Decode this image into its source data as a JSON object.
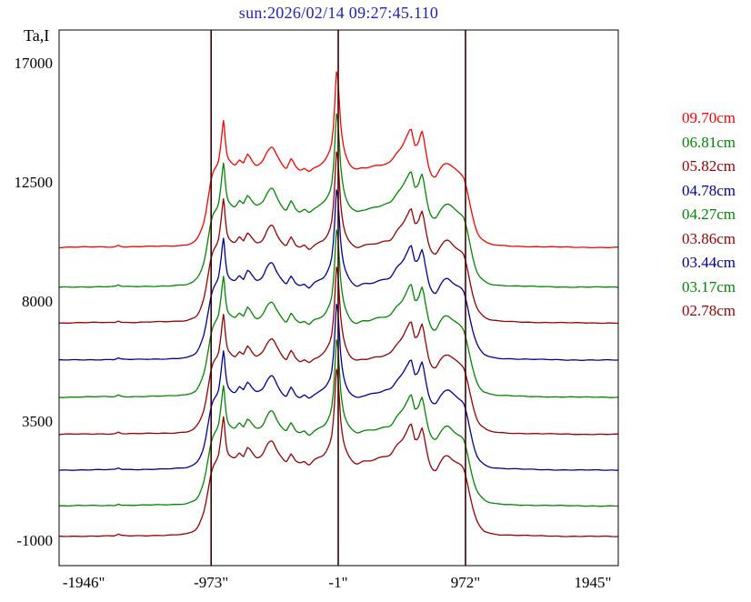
{
  "title": {
    "text": "sun:2026/02/14 09:27:45.110",
    "color": "#2222bb"
  },
  "axes": {
    "y_label": "Ta,I",
    "y_ticks": [
      17000,
      12500,
      8000,
      3500,
      -1000
    ],
    "x_ticks": [
      "-1946\"",
      "-973\"",
      "-1\"",
      "972\"",
      "1945\""
    ],
    "x_tick_values": [
      -1946,
      -973,
      -1,
      972,
      1945
    ]
  },
  "markers": {
    "vertical_lines": [
      -973,
      -1,
      972
    ],
    "color": "#400000"
  },
  "chart_data": {
    "type": "line",
    "title": "sun:2026/02/14 09:27:45.110",
    "xlabel": "",
    "ylabel": "Ta,I",
    "xlim": [
      -2135,
      2140
    ],
    "ylim": [
      -1900,
      18300
    ],
    "grid": false,
    "legend_position": "right",
    "x_ticks": [
      -1946,
      -973,
      -1,
      972,
      1945
    ],
    "y_ticks": [
      17000,
      12500,
      8000,
      3500,
      -1000
    ],
    "vertical_markers": [
      -973,
      -1,
      972
    ],
    "profile_points": [
      [
        -2135,
        0
      ],
      [
        -1950,
        0.002
      ],
      [
        -1800,
        0.003
      ],
      [
        -1710,
        0.004
      ],
      [
        -1682,
        0.013
      ],
      [
        -1655,
        0.005
      ],
      [
        -1560,
        0.004
      ],
      [
        -1430,
        0.006
      ],
      [
        -1300,
        0.008
      ],
      [
        -1200,
        0.012
      ],
      [
        -1140,
        0.02
      ],
      [
        -1080,
        0.05
      ],
      [
        -1030,
        0.14
      ],
      [
        -1000,
        0.26
      ],
      [
        -978,
        0.36
      ],
      [
        -958,
        0.42
      ],
      [
        -938,
        0.45
      ],
      [
        -916,
        0.49
      ],
      [
        -896,
        0.6
      ],
      [
        -878,
        0.72
      ],
      [
        -866,
        0.62
      ],
      [
        -850,
        0.52
      ],
      [
        -826,
        0.485
      ],
      [
        -790,
        0.47
      ],
      [
        -755,
        0.5
      ],
      [
        -725,
        0.48
      ],
      [
        -695,
        0.53
      ],
      [
        -662,
        0.5
      ],
      [
        -625,
        0.47
      ],
      [
        -580,
        0.49
      ],
      [
        -540,
        0.55
      ],
      [
        -505,
        0.57
      ],
      [
        -470,
        0.52
      ],
      [
        -430,
        0.47
      ],
      [
        -395,
        0.45
      ],
      [
        -362,
        0.5
      ],
      [
        -330,
        0.46
      ],
      [
        -295,
        0.44
      ],
      [
        -258,
        0.45
      ],
      [
        -225,
        0.43
      ],
      [
        -185,
        0.455
      ],
      [
        -148,
        0.47
      ],
      [
        -110,
        0.49
      ],
      [
        -78,
        0.53
      ],
      [
        -50,
        0.6
      ],
      [
        -30,
        0.78
      ],
      [
        -14,
        1
      ],
      [
        2,
        0.9
      ],
      [
        18,
        0.7
      ],
      [
        40,
        0.57
      ],
      [
        68,
        0.5
      ],
      [
        100,
        0.46
      ],
      [
        140,
        0.44
      ],
      [
        185,
        0.45
      ],
      [
        235,
        0.455
      ],
      [
        290,
        0.465
      ],
      [
        345,
        0.475
      ],
      [
        400,
        0.49
      ],
      [
        445,
        0.54
      ],
      [
        490,
        0.58
      ],
      [
        530,
        0.64
      ],
      [
        558,
        0.67
      ],
      [
        585,
        0.58
      ],
      [
        615,
        0.6
      ],
      [
        640,
        0.655
      ],
      [
        665,
        0.56
      ],
      [
        690,
        0.46
      ],
      [
        715,
        0.41
      ],
      [
        745,
        0.4
      ],
      [
        775,
        0.44
      ],
      [
        808,
        0.475
      ],
      [
        840,
        0.48
      ],
      [
        872,
        0.46
      ],
      [
        905,
        0.44
      ],
      [
        932,
        0.425
      ],
      [
        958,
        0.4
      ],
      [
        980,
        0.34
      ],
      [
        1002,
        0.26
      ],
      [
        1028,
        0.17
      ],
      [
        1060,
        0.09
      ],
      [
        1100,
        0.045
      ],
      [
        1150,
        0.022
      ],
      [
        1220,
        0.012
      ],
      [
        1320,
        0.008
      ],
      [
        1450,
        0.005
      ],
      [
        1600,
        0.003
      ],
      [
        1800,
        0.001
      ],
      [
        2140,
        0
      ]
    ],
    "series": [
      {
        "name": "09.70cm",
        "color": "#ff0000",
        "baseline": 10100,
        "amplitude": 6640
      },
      {
        "name": "06.81cm",
        "color": "#008800",
        "baseline": 8600,
        "amplitude": 6520
      },
      {
        "name": "05.82cm",
        "color": "#990000",
        "baseline": 7250,
        "amplitude": 6450
      },
      {
        "name": "04.78cm",
        "color": "#000099",
        "baseline": 5850,
        "amplitude": 6400
      },
      {
        "name": "04.27cm",
        "color": "#008800",
        "baseline": 4450,
        "amplitude": 6350
      },
      {
        "name": "03.86cm",
        "color": "#990000",
        "baseline": 3050,
        "amplitude": 6300
      },
      {
        "name": "03.44cm",
        "color": "#000099",
        "baseline": 1700,
        "amplitude": 6250
      },
      {
        "name": "03.17cm",
        "color": "#008800",
        "baseline": 350,
        "amplitude": 6250
      },
      {
        "name": "02.78cm",
        "color": "#990000",
        "baseline": -800,
        "amplitude": 6300
      }
    ]
  }
}
